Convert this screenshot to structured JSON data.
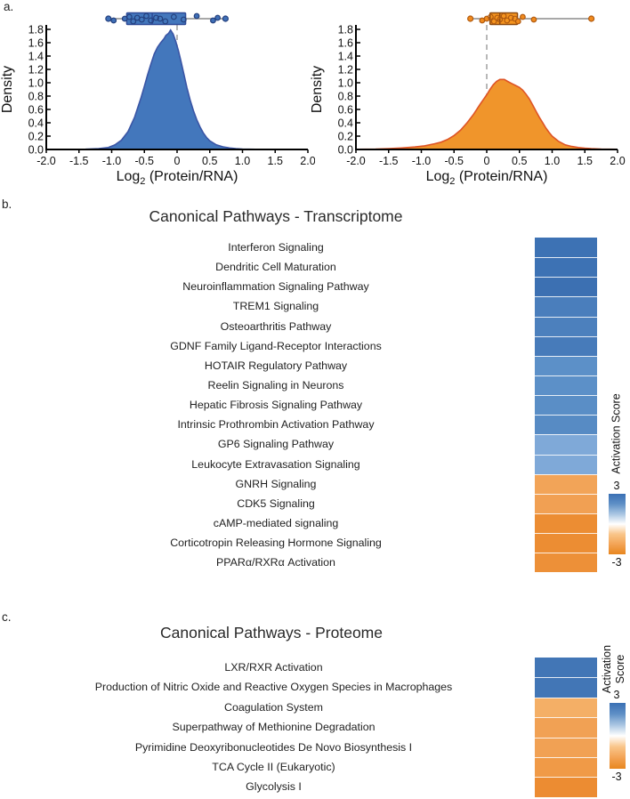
{
  "panels": {
    "a": "a.",
    "b": "b.",
    "c": "c."
  },
  "chart_data": [
    {
      "type": "area",
      "id": "density-transcriptome",
      "title": "",
      "xlabel_parts": {
        "pre": "Log",
        "sub": "2",
        "post": " (Protein/RNA)"
      },
      "ylabel": "Density",
      "xlim": [
        -2.0,
        2.0
      ],
      "ylim": [
        0.0,
        1.8
      ],
      "xticks": [
        "-2.0",
        "-1.5",
        "-1.0",
        "-0.5",
        "0",
        "0.5",
        "1.0",
        "1.5",
        "2.0"
      ],
      "yticks": [
        "0.0",
        "0.2",
        "0.4",
        "0.6",
        "0.8",
        "1.0",
        "1.2",
        "1.4",
        "1.6",
        "1.8"
      ],
      "ref_line_x": 0,
      "grid": false,
      "colors": {
        "fill": "#4377BC",
        "edge": "#3A55A5",
        "box_fill": "#4377BC",
        "box_edge": "#2E4A97",
        "whisker": "#8c8c8c",
        "dot_fill": "#3F6FB6",
        "dot_edge": "#24407E",
        "ref": "#999999",
        "axis": "#000000"
      },
      "curve": [
        [
          -2,
          0
        ],
        [
          -1.4,
          0.004
        ],
        [
          -1.2,
          0.012
        ],
        [
          -1.05,
          0.03
        ],
        [
          -0.95,
          0.07
        ],
        [
          -0.85,
          0.14
        ],
        [
          -0.75,
          0.27
        ],
        [
          -0.65,
          0.48
        ],
        [
          -0.55,
          0.78
        ],
        [
          -0.5,
          0.95
        ],
        [
          -0.45,
          1.12
        ],
        [
          -0.4,
          1.28
        ],
        [
          -0.35,
          1.43
        ],
        [
          -0.3,
          1.53
        ],
        [
          -0.25,
          1.6
        ],
        [
          -0.2,
          1.66
        ],
        [
          -0.17,
          1.71
        ],
        [
          -0.13,
          1.74
        ],
        [
          -0.1,
          1.79
        ],
        [
          -0.06,
          1.73
        ],
        [
          -0.02,
          1.62
        ],
        [
          0.02,
          1.48
        ],
        [
          0.06,
          1.32
        ],
        [
          0.1,
          1.15
        ],
        [
          0.15,
          0.93
        ],
        [
          0.2,
          0.74
        ],
        [
          0.25,
          0.58
        ],
        [
          0.3,
          0.45
        ],
        [
          0.35,
          0.34
        ],
        [
          0.4,
          0.25
        ],
        [
          0.45,
          0.18
        ],
        [
          0.5,
          0.13
        ],
        [
          0.6,
          0.07
        ],
        [
          0.7,
          0.04
        ],
        [
          0.8,
          0.022
        ],
        [
          0.9,
          0.012
        ],
        [
          1,
          0.007
        ],
        [
          1.2,
          0.003
        ],
        [
          1.5,
          0.001
        ],
        [
          2,
          0
        ]
      ],
      "boxplot": {
        "whisker_low": -1.05,
        "q1": -0.77,
        "median": -0.38,
        "q3": 0.13,
        "whisker_high": 0.74,
        "points": [
          -1.05,
          -0.97,
          -0.8,
          -0.73,
          -0.67,
          -0.61,
          -0.54,
          -0.47,
          -0.4,
          -0.32,
          -0.26,
          -0.18,
          -0.05,
          0.1,
          0.3,
          0.55,
          0.62,
          0.74
        ]
      }
    },
    {
      "type": "area",
      "id": "density-proteome",
      "title": "",
      "xlabel_parts": {
        "pre": "Log",
        "sub": "2",
        "post": " (Protein/RNA)"
      },
      "ylabel": "Density",
      "xlim": [
        -2.0,
        2.0
      ],
      "ylim": [
        0.0,
        1.8
      ],
      "xticks": [
        "-2.0",
        "-1.5",
        "-1.0",
        "-0.5",
        "0",
        "0.5",
        "1.0",
        "1.5",
        "2.0"
      ],
      "yticks": [
        "0.0",
        "0.2",
        "0.4",
        "0.6",
        "0.8",
        "1.0",
        "1.2",
        "1.4",
        "1.6",
        "1.8"
      ],
      "ref_line_x": 0,
      "grid": false,
      "colors": {
        "fill": "#F0952B",
        "edge": "#DE5426",
        "box_fill": "#F5941E",
        "box_edge": "#8C4A10",
        "whisker": "#8c8c8c",
        "dot_fill": "#F08A1D",
        "dot_edge": "#B05A10",
        "ref": "#999999",
        "axis": "#000000"
      },
      "curve": [
        [
          -2,
          0.002
        ],
        [
          -1.7,
          0.006
        ],
        [
          -1.5,
          0.012
        ],
        [
          -1.3,
          0.022
        ],
        [
          -1.1,
          0.038
        ],
        [
          -0.95,
          0.055
        ],
        [
          -0.8,
          0.085
        ],
        [
          -0.7,
          0.11
        ],
        [
          -0.6,
          0.15
        ],
        [
          -0.5,
          0.21
        ],
        [
          -0.4,
          0.29
        ],
        [
          -0.3,
          0.4
        ],
        [
          -0.2,
          0.53
        ],
        [
          -0.1,
          0.68
        ],
        [
          -0.05,
          0.75
        ],
        [
          0,
          0.82
        ],
        [
          0.05,
          0.9
        ],
        [
          0.1,
          0.97
        ],
        [
          0.15,
          1.02
        ],
        [
          0.2,
          1.05
        ],
        [
          0.27,
          1.05
        ],
        [
          0.32,
          1.02
        ],
        [
          0.38,
          0.99
        ],
        [
          0.44,
          0.96
        ],
        [
          0.5,
          0.93
        ],
        [
          0.55,
          0.89
        ],
        [
          0.6,
          0.83
        ],
        [
          0.65,
          0.76
        ],
        [
          0.7,
          0.67
        ],
        [
          0.75,
          0.58
        ],
        [
          0.8,
          0.49
        ],
        [
          0.85,
          0.41
        ],
        [
          0.9,
          0.33
        ],
        [
          0.95,
          0.26
        ],
        [
          1,
          0.2
        ],
        [
          1.1,
          0.12
        ],
        [
          1.2,
          0.07
        ],
        [
          1.3,
          0.045
        ],
        [
          1.4,
          0.03
        ],
        [
          1.5,
          0.02
        ],
        [
          1.6,
          0.013
        ],
        [
          1.75,
          0.007
        ],
        [
          2,
          0.003
        ]
      ],
      "boxplot": {
        "whisker_low": -0.25,
        "q1": 0.05,
        "median": 0.2,
        "q3": 0.47,
        "whisker_high": 1.6,
        "points": [
          -0.25,
          -0.07,
          0,
          0.06,
          0.11,
          0.16,
          0.2,
          0.26,
          0.31,
          0.37,
          0.43,
          0.48,
          0.55,
          0.72,
          1.6
        ]
      }
    },
    {
      "type": "heatmap",
      "id": "canonical-pathways-transcriptome",
      "title": "Canonical Pathways - Transcriptome",
      "legend": {
        "title": "Activation Score",
        "max": "3",
        "min": "-3",
        "gradient": [
          "#3A70B4",
          "#5E8FC6",
          "#A9C5E2",
          "#FFFFFF",
          "#F9C58A",
          "#F3A355",
          "#E8861F"
        ]
      },
      "rows": [
        {
          "label": "Interferon Signaling",
          "color": "#3D72B4",
          "score": 2.7
        },
        {
          "label": "Dendritic Cell Maturation",
          "color": "#3D72B4",
          "score": 2.7
        },
        {
          "label": "Neuroinflammation Signaling Pathway",
          "color": "#3C70B2",
          "score": 2.8
        },
        {
          "label": "TREM1 Signaling",
          "color": "#4A7EBC",
          "score": 2.4
        },
        {
          "label": "Osteoarthritis Pathway",
          "color": "#4C80BD",
          "score": 2.4
        },
        {
          "label": "GDNF Family Ligand-Receptor Interactions",
          "color": "#477BBA",
          "score": 2.5
        },
        {
          "label": "HOTAIR Regulatory Pathway",
          "color": "#5C90C8",
          "score": 2.1
        },
        {
          "label": "Reelin Signaling in Neurons",
          "color": "#5C90C8",
          "score": 2.1
        },
        {
          "label": "Hepatic Fibrosis Signaling Pathway",
          "color": "#5A8EC6",
          "score": 2.1
        },
        {
          "label": "Intrinsic Prothrombin Activation Pathway",
          "color": "#578BC4",
          "score": 2.2
        },
        {
          "label": "GP6 Signaling Pathway",
          "color": "#7FA9D8",
          "score": 1.6
        },
        {
          "label": "Leukocyte Extravasation Signaling",
          "color": "#7FA9D8",
          "score": 1.6
        },
        {
          "label": "GNRH Signaling",
          "color": "#F2A458",
          "score": -1.8
        },
        {
          "label": "CDK5 Signaling",
          "color": "#F1A053",
          "score": -1.9
        },
        {
          "label": "cAMP-mediated signaling",
          "color": "#EC8D33",
          "score": -2.3
        },
        {
          "label": "Corticotropin Releasing Hormone Signaling",
          "color": "#EC8D33",
          "score": -2.3
        },
        {
          "label": "PPARα/RXRα Activation",
          "color": "#ED9038",
          "score": -2.2
        }
      ]
    },
    {
      "type": "heatmap",
      "id": "canonical-pathways-proteome",
      "title": "Canonical Pathways - Proteome",
      "legend": {
        "title": "Activation Score",
        "max": "3",
        "min": "-3",
        "gradient": [
          "#3A70B4",
          "#5E8FC6",
          "#A9C5E2",
          "#FFFFFF",
          "#F9C58A",
          "#F3A355",
          "#E8861F"
        ]
      },
      "rows": [
        {
          "label": "LXR/RXR Activation",
          "color": "#4276B6",
          "score": 2.6
        },
        {
          "label": "Production of Nitric Oxide and Reactive Oxygen Species in Macrophages",
          "color": "#4276B6",
          "score": 2.6
        },
        {
          "label": "Coagulation System",
          "color": "#F4AF66",
          "score": -1.5
        },
        {
          "label": "Superpathway of Methionine Degradation",
          "color": "#F1A154",
          "score": -1.8
        },
        {
          "label": "Pyrimidine Deoxyribonucleotides De Novo Biosynthesis I",
          "color": "#F1A154",
          "score": -1.8
        },
        {
          "label": "TCA Cycle II (Eukaryotic)",
          "color": "#F09A47",
          "score": -2.0
        },
        {
          "label": "Glycolysis I",
          "color": "#EC8C32",
          "score": -2.3
        }
      ]
    }
  ]
}
